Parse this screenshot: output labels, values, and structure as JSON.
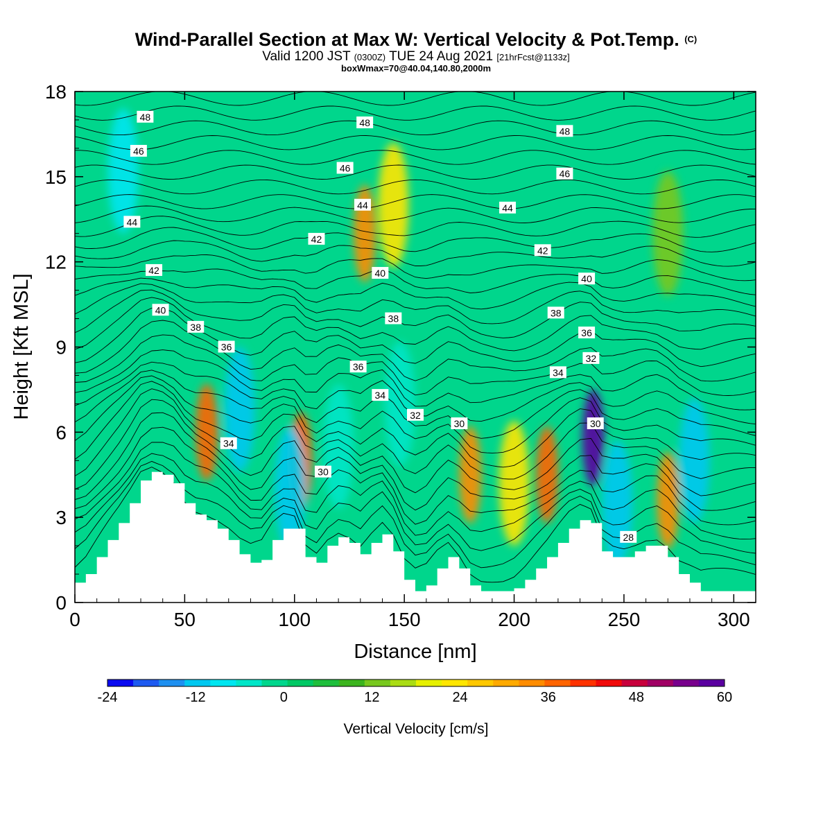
{
  "header": {
    "title": "Wind-Parallel Section at Max W: Vertical Velocity & Pot.Temp.",
    "title_mark": "(C)",
    "valid_prefix": "Valid 1200 JST",
    "valid_utc": "(0300Z)",
    "valid_date": "TUE 24 Aug 2021",
    "forecast_info": "[21hrFcst@1133z]",
    "box_info": "boxWmax=70@40.04,140.80,2000m"
  },
  "chart_data": {
    "type": "heatmap",
    "title": "Wind-Parallel Section at Max W: Vertical Velocity & Pot.Temp.",
    "xlabel": "Distance [nm]",
    "ylabel": "Height [Kft MSL]",
    "xlim": [
      0,
      310
    ],
    "ylim": [
      0,
      18
    ],
    "x_ticks": [
      0,
      50,
      100,
      150,
      200,
      250,
      300
    ],
    "y_ticks": [
      0,
      3,
      6,
      9,
      12,
      15,
      18
    ],
    "colorbar": {
      "title": "Vertical Velocity [cm/s]",
      "tick_values": [
        -24,
        -12,
        0,
        12,
        24,
        36,
        48,
        60
      ],
      "levels": [
        -24,
        -21,
        -18,
        -15,
        -12,
        -9,
        -6,
        -3,
        0,
        3,
        6,
        9,
        12,
        15,
        18,
        21,
        24,
        27,
        30,
        33,
        36,
        39,
        42,
        45,
        48,
        51,
        54,
        57,
        60
      ],
      "colors": [
        "#0a0af0",
        "#1e5af0",
        "#1e90f0",
        "#00c8f0",
        "#00e6f0",
        "#00e6c8",
        "#00d68c",
        "#00c864",
        "#1ebe3c",
        "#3cb41e",
        "#78c81e",
        "#aadc14",
        "#e6f000",
        "#ffe600",
        "#ffc800",
        "#ffaa00",
        "#ff8c00",
        "#ff6400",
        "#ff3200",
        "#f00a0a",
        "#c8003c",
        "#a00064",
        "#78008c",
        "#5a00a0"
      ]
    },
    "terrain_profile": {
      "x": [
        0,
        5,
        10,
        15,
        20,
        25,
        30,
        35,
        40,
        45,
        50,
        55,
        60,
        65,
        70,
        75,
        80,
        85,
        90,
        95,
        100,
        105,
        110,
        115,
        120,
        125,
        130,
        135,
        140,
        145,
        150,
        155,
        160,
        165,
        170,
        175,
        180,
        185,
        190,
        195,
        200,
        205,
        210,
        215,
        220,
        225,
        230,
        235,
        240,
        245,
        250,
        255,
        260,
        265,
        270,
        275,
        280,
        285,
        290,
        295,
        300,
        305,
        310
      ],
      "height": [
        0.7,
        1.0,
        1.6,
        2.2,
        2.8,
        3.5,
        4.3,
        4.6,
        4.5,
        4.2,
        3.5,
        3.1,
        2.9,
        2.6,
        2.2,
        1.7,
        1.4,
        1.5,
        2.2,
        2.6,
        2.6,
        1.6,
        1.4,
        2.0,
        2.3,
        2.1,
        1.7,
        2.1,
        2.4,
        1.8,
        0.8,
        0.4,
        0.6,
        1.2,
        1.6,
        1.2,
        0.6,
        0.4,
        0.4,
        0.4,
        0.5,
        0.8,
        1.2,
        1.6,
        2.1,
        2.6,
        2.9,
        2.8,
        1.8,
        1.6,
        1.6,
        1.8,
        2.0,
        2.0,
        1.6,
        1.0,
        0.7,
        0.4,
        0.4,
        0.4,
        0.4,
        0.4,
        0.4
      ]
    },
    "velocity_features": [
      {
        "x": 22,
        "y": 15.2,
        "value": -12
      },
      {
        "x": 60,
        "y": 6.0,
        "value": 27
      },
      {
        "x": 75,
        "y": 6.8,
        "value": -15
      },
      {
        "x": 103,
        "y": 5.0,
        "value": 27
      },
      {
        "x": 98,
        "y": 4.0,
        "value": -15
      },
      {
        "x": 132,
        "y": 13.0,
        "value": 24
      },
      {
        "x": 145,
        "y": 14.0,
        "value": 15
      },
      {
        "x": 120,
        "y": 5.5,
        "value": -9
      },
      {
        "x": 148,
        "y": 7.0,
        "value": -9
      },
      {
        "x": 180,
        "y": 4.5,
        "value": 24
      },
      {
        "x": 200,
        "y": 4.2,
        "value": 15
      },
      {
        "x": 215,
        "y": 4.5,
        "value": 27
      },
      {
        "x": 236,
        "y": 5.8,
        "value": 48
      },
      {
        "x": 247,
        "y": 3.5,
        "value": -15
      },
      {
        "x": 270,
        "y": 3.6,
        "value": 24
      },
      {
        "x": 282,
        "y": 5.0,
        "value": -15
      },
      {
        "x": 270,
        "y": 13.0,
        "value": 6
      }
    ],
    "theta_labels": [
      {
        "text": "48",
        "x": 32,
        "y": 17.1
      },
      {
        "text": "46",
        "x": 29,
        "y": 15.9
      },
      {
        "text": "44",
        "x": 26,
        "y": 13.4
      },
      {
        "text": "42",
        "x": 36,
        "y": 11.7
      },
      {
        "text": "40",
        "x": 39,
        "y": 10.3
      },
      {
        "text": "38",
        "x": 55,
        "y": 9.7
      },
      {
        "text": "36",
        "x": 69,
        "y": 9.0
      },
      {
        "text": "34",
        "x": 70,
        "y": 5.6
      },
      {
        "text": "48",
        "x": 132,
        "y": 16.9
      },
      {
        "text": "46",
        "x": 123,
        "y": 15.3
      },
      {
        "text": "44",
        "x": 131,
        "y": 14.0
      },
      {
        "text": "42",
        "x": 110,
        "y": 12.8
      },
      {
        "text": "40",
        "x": 139,
        "y": 11.6
      },
      {
        "text": "38",
        "x": 145,
        "y": 10.0
      },
      {
        "text": "36",
        "x": 129,
        "y": 8.3
      },
      {
        "text": "34",
        "x": 139,
        "y": 7.3
      },
      {
        "text": "32",
        "x": 155,
        "y": 6.6
      },
      {
        "text": "30",
        "x": 175,
        "y": 6.3
      },
      {
        "text": "30",
        "x": 113,
        "y": 4.6
      },
      {
        "text": "48",
        "x": 223,
        "y": 16.6
      },
      {
        "text": "46",
        "x": 223,
        "y": 15.1
      },
      {
        "text": "44",
        "x": 197,
        "y": 13.9
      },
      {
        "text": "42",
        "x": 213,
        "y": 12.4
      },
      {
        "text": "40",
        "x": 233,
        "y": 11.4
      },
      {
        "text": "38",
        "x": 219,
        "y": 10.2
      },
      {
        "text": "36",
        "x": 233,
        "y": 9.5
      },
      {
        "text": "34",
        "x": 220,
        "y": 8.1
      },
      {
        "text": "32",
        "x": 235,
        "y": 8.6
      },
      {
        "text": "30",
        "x": 237,
        "y": 6.3
      },
      {
        "text": "28",
        "x": 252,
        "y": 2.3
      }
    ]
  }
}
